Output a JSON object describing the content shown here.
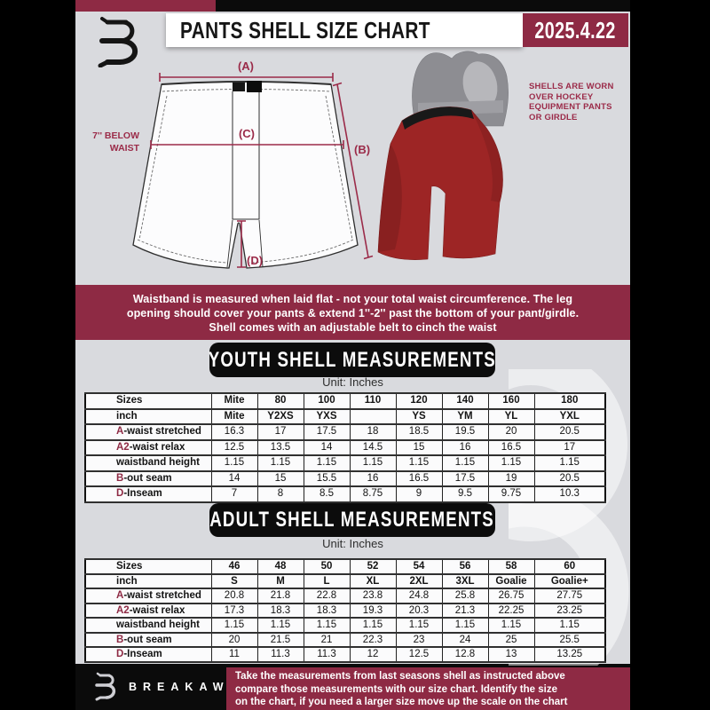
{
  "header": {
    "title": "PANTS SHELL SIZE CHART",
    "date": "2025.4.22"
  },
  "diagram": {
    "label_a": "(A)",
    "label_b": "(B)",
    "label_c": "(C)",
    "label_d": "(D)",
    "below_waist_1": "7'' BELOW",
    "below_waist_2": "WAIST",
    "photo_note": [
      "SHELLS ARE WORN",
      "OVER HOCKEY",
      "EQUIPMENT PANTS",
      "OR GIRDLE"
    ]
  },
  "info_banner": {
    "lines": [
      "Waistband is measured when laid flat - not your total waist circumference. The leg",
      "opening should cover your pants & extend 1''-2'' past the bottom of your pant/girdle.",
      "Shell comes with an adjustable belt to cinch the waist"
    ]
  },
  "youth": {
    "title": "YOUTH SHELL MEASUREMENTS",
    "unit": "Unit: Inches",
    "table": {
      "corner": "Sizes",
      "columns": [
        "Mite",
        "80",
        "100",
        "110",
        "120",
        "140",
        "160",
        "180"
      ],
      "rows": [
        {
          "prefix": "",
          "label": "inch",
          "bold": true,
          "values": [
            "Mite",
            "Y2XS",
            "YXS",
            "",
            "YS",
            "YM",
            "YL",
            "YXL"
          ]
        },
        {
          "prefix": "A",
          "label": "-waist stretched",
          "values": [
            "16.3",
            "17",
            "17.5",
            "18",
            "18.5",
            "19.5",
            "20",
            "20.5"
          ]
        },
        {
          "prefix": "A2",
          "label": "-waist relax",
          "values": [
            "12.5",
            "13.5",
            "14",
            "14.5",
            "15",
            "16",
            "16.5",
            "17"
          ]
        },
        {
          "prefix": "",
          "label": "waistband height",
          "values": [
            "1.15",
            "1.15",
            "1.15",
            "1.15",
            "1.15",
            "1.15",
            "1.15",
            "1.15"
          ]
        },
        {
          "prefix": "B",
          "label": "-out seam",
          "values": [
            "14",
            "15",
            "15.5",
            "16",
            "16.5",
            "17.5",
            "19",
            "20.5"
          ]
        },
        {
          "prefix": "D",
          "label": "-Inseam",
          "values": [
            "7",
            "8",
            "8.5",
            "8.75",
            "9",
            "9.5",
            "9.75",
            "10.3"
          ]
        }
      ]
    }
  },
  "adult": {
    "title": "ADULT SHELL MEASUREMENTS",
    "unit": "Unit: Inches",
    "table": {
      "corner": "Sizes",
      "columns": [
        "46",
        "48",
        "50",
        "52",
        "54",
        "56",
        "58",
        "60"
      ],
      "rows": [
        {
          "prefix": "",
          "label": "inch",
          "bold": true,
          "values": [
            "S",
            "M",
            "L",
            "XL",
            "2XL",
            "3XL",
            "Goalie",
            "Goalie+"
          ]
        },
        {
          "prefix": "A",
          "label": "-waist stretched",
          "values": [
            "20.8",
            "21.8",
            "22.8",
            "23.8",
            "24.8",
            "25.8",
            "26.75",
            "27.75"
          ]
        },
        {
          "prefix": "A2",
          "label": "-waist relax",
          "values": [
            "17.3",
            "18.3",
            "18.3",
            "19.3",
            "20.3",
            "21.3",
            "22.25",
            "23.25"
          ]
        },
        {
          "prefix": "",
          "label": "waistband height",
          "values": [
            "1.15",
            "1.15",
            "1.15",
            "1.15",
            "1.15",
            "1.15",
            "1.15",
            "1.15"
          ]
        },
        {
          "prefix": "B",
          "label": "-out seam",
          "values": [
            "20",
            "21.5",
            "21",
            "22.3",
            "23",
            "24",
            "25",
            "25.5"
          ]
        },
        {
          "prefix": "D",
          "label": "-Inseam",
          "values": [
            "11",
            "11.3",
            "11.3",
            "12",
            "12.5",
            "12.8",
            "13",
            "13.25"
          ]
        }
      ]
    }
  },
  "footer": {
    "brand": "BREAKAWAY",
    "lines": [
      "Take the measurements from last seasons shell as instructed above",
      "compare those measurements  with our size chart. Identify the size",
      "on the chart, if you need a larger size move up the scale on the chart"
    ]
  },
  "colors": {
    "maroon": "#8e2a44",
    "diagram_accent": "#9b2b49",
    "shell_red": "#9d2525",
    "page_background": "#d9dade",
    "banner_black": "#0c0c0c"
  }
}
